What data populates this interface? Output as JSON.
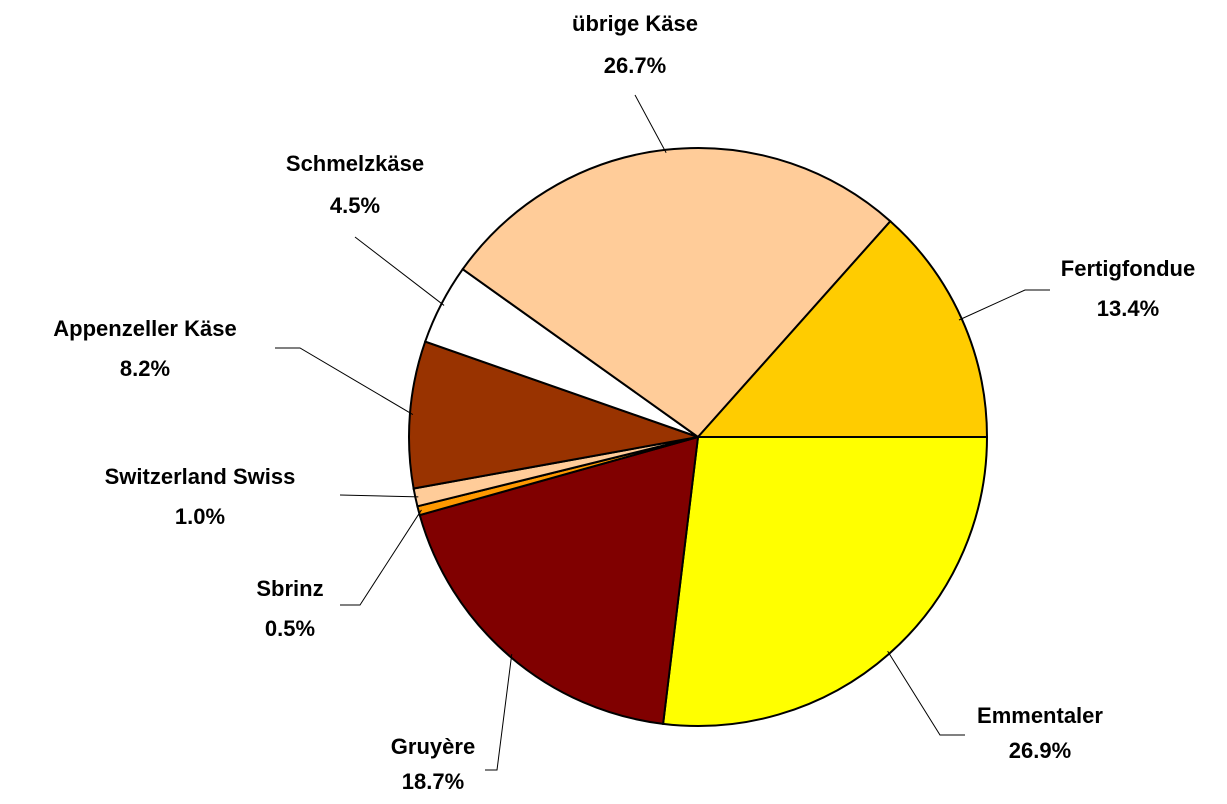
{
  "chart_data": {
    "type": "pie",
    "categories": [
      "Emmentaler",
      "Gruyère",
      "Sbrinz",
      "Switzerland Swiss",
      "Appenzeller Käse",
      "Schmelzkäse",
      "übrige Käse",
      "Fertigfondue"
    ],
    "values": [
      26.9,
      18.7,
      0.5,
      1.0,
      8.2,
      4.5,
      26.7,
      13.4
    ],
    "value_labels": [
      "26.9%",
      "18.7%",
      "0.5%",
      "1.0%",
      "8.2%",
      "4.5%",
      "26.7%",
      "13.4%"
    ],
    "colors": [
      "#ffff00",
      "#800000",
      "#ff9900",
      "#ffcc99",
      "#993300",
      "#ffffff",
      "#ffcc99",
      "#ffcc00"
    ]
  }
}
